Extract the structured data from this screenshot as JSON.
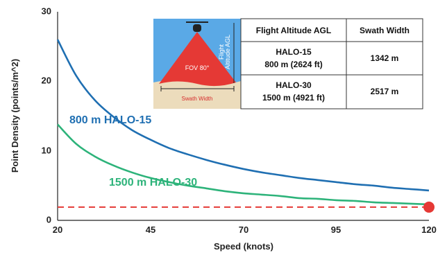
{
  "chart_data": {
    "type": "line",
    "xlabel": "Speed (knots)",
    "ylabel": "Point Density (points/m^2)",
    "xlim": [
      20,
      120
    ],
    "ylim": [
      0,
      30
    ],
    "x_ticks": [
      "20",
      "45",
      "70",
      "95",
      "120"
    ],
    "y_ticks": [
      "0",
      "10",
      "20",
      "30"
    ],
    "grid": false,
    "series": [
      {
        "name": "800 m HALO-15",
        "color": "#1f6fb2",
        "x": [
          20,
          25,
          30,
          35,
          40,
          45,
          50,
          55,
          60,
          65,
          70,
          75,
          80,
          85,
          90,
          95,
          100,
          105,
          110,
          115,
          120
        ],
        "y": [
          26.0,
          20.8,
          17.3,
          14.9,
          13.0,
          11.6,
          10.4,
          9.5,
          8.7,
          8.0,
          7.4,
          6.9,
          6.5,
          6.1,
          5.8,
          5.5,
          5.2,
          5.0,
          4.7,
          4.5,
          4.3
        ]
      },
      {
        "name": "1500 m HALO-30",
        "color": "#2db37a",
        "x": [
          20,
          25,
          30,
          35,
          40,
          45,
          50,
          55,
          60,
          65,
          70,
          75,
          80,
          85,
          90,
          95,
          100,
          105,
          110,
          115,
          120
        ],
        "y": [
          13.8,
          11.0,
          9.2,
          7.9,
          6.9,
          6.1,
          5.5,
          5.0,
          4.6,
          4.2,
          3.9,
          3.7,
          3.5,
          3.2,
          3.1,
          2.9,
          2.8,
          2.6,
          2.5,
          2.4,
          2.3
        ]
      }
    ],
    "threshold": {
      "value": 1.9,
      "color": "#e53935",
      "style": "dashed"
    },
    "marker": {
      "x": 120,
      "y": 1.9,
      "color": "#e53935"
    },
    "table": {
      "headers": [
        "Flight Altitude AGL",
        "Swath Width"
      ],
      "rows": [
        {
          "altitude_line1": "HALO-15",
          "altitude_line2": "800 m (2624 ft)",
          "swath": "1342 m"
        },
        {
          "altitude_line1": "HALO-30",
          "altitude_line2": "1500 m (4921 ft)",
          "swath": "2517 m"
        }
      ]
    },
    "inset": {
      "fov_label": "FOV 80°",
      "altitude_label_line1": "Flight",
      "altitude_label_line2": "Altitude AGL",
      "swath_label": "Swath Width"
    }
  }
}
